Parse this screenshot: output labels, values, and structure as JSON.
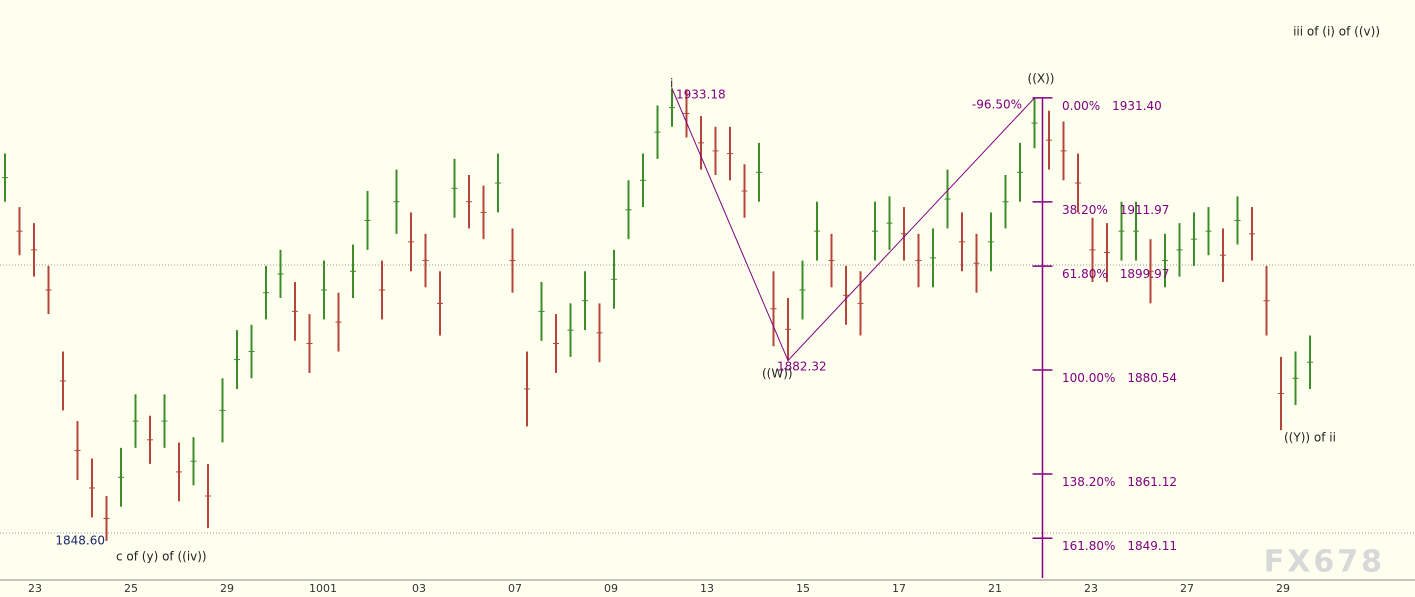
{
  "chart_data": {
    "type": "ohlc",
    "categories": [
      "23",
      "25",
      "29",
      "1001",
      "03",
      "07",
      "09",
      "13",
      "15",
      "17",
      "21",
      "23",
      "27",
      "29"
    ],
    "ylim": [
      1841.3,
      1949.7
    ],
    "up_color": "#3c8c2a",
    "down_color": "#b5453a",
    "line_color": "#800080",
    "highs": [
      1921,
      1911,
      1908,
      1900,
      1884,
      1871,
      1864,
      1857,
      1866,
      1876,
      1872,
      1876,
      1867,
      1868,
      1863,
      1879,
      1888,
      1889,
      1900,
      1903,
      1897,
      1891,
      1901,
      1895,
      1904,
      1914,
      1901,
      1918,
      1910,
      1906,
      1899,
      1920,
      1917,
      1915,
      1921,
      1907,
      1884,
      1897,
      1891,
      1893,
      1899,
      1893,
      1903,
      1916,
      1921,
      1930,
      1933.18,
      1933,
      1928,
      1926,
      1926,
      1919,
      1923,
      1899,
      1894,
      1901,
      1912,
      1906,
      1900,
      1899,
      1912,
      1913,
      1911,
      1906,
      1907,
      1918,
      1910,
      1906,
      1910,
      1917,
      1923,
      1931.4,
      1929,
      1927,
      1921,
      1909,
      1908,
      1912,
      1912,
      1905,
      1906,
      1908,
      1910,
      1911,
      1907,
      1913,
      1911,
      1900,
      1883,
      1884,
      1887
    ],
    "lows": [
      1912,
      1902,
      1898,
      1891,
      1873,
      1860,
      1853,
      1848.6,
      1855,
      1866,
      1863,
      1866,
      1856,
      1859,
      1851,
      1867,
      1877,
      1879,
      1890,
      1894,
      1886,
      1880,
      1890,
      1884,
      1894,
      1903,
      1890,
      1906,
      1899,
      1896,
      1887,
      1909,
      1907,
      1905,
      1910,
      1895,
      1870,
      1886,
      1880,
      1883,
      1888,
      1882,
      1892,
      1905,
      1911,
      1920,
      1926,
      1924,
      1918,
      1917,
      1916,
      1909,
      1912,
      1885,
      1882.32,
      1890,
      1901,
      1896,
      1889,
      1887,
      1901,
      1903,
      1901,
      1896,
      1896,
      1907,
      1899,
      1895,
      1899,
      1907,
      1912,
      1922,
      1918,
      1916,
      1910,
      1897,
      1897,
      1901,
      1901,
      1893,
      1896,
      1898,
      1900,
      1902,
      1897,
      1904,
      1901,
      1887,
      1869.3,
      1874,
      1877
    ],
    "fib_levels": [
      {
        "pct": "0.00%",
        "price": {
          "value": 1931.4,
          "label": "1931.40"
        }
      },
      {
        "pct": "38.20%",
        "price": 1911.97
      },
      {
        "pct": "61.80%",
        "price": 1899.97
      },
      {
        "pct": "100.00%",
        "price": 1880.54
      },
      {
        "pct": "138.20%",
        "price": 1861.12
      },
      {
        "pct": "161.80%",
        "price": 1849.11
      }
    ],
    "annotations": {
      "low_price": {
        "value": 1848.6,
        "label": "1848.60"
      },
      "low_wave": "c of (y) of ((iv))",
      "i_label": "i",
      "i_price": 1933.18,
      "w_label": "((W))",
      "w_price": 1882.32,
      "x_label": "((X))",
      "x_ratio": "-96.50%",
      "y_label": "((Y)) of ii",
      "top_right": "iii of (i) of ((v))"
    },
    "watermark": "FX678"
  }
}
